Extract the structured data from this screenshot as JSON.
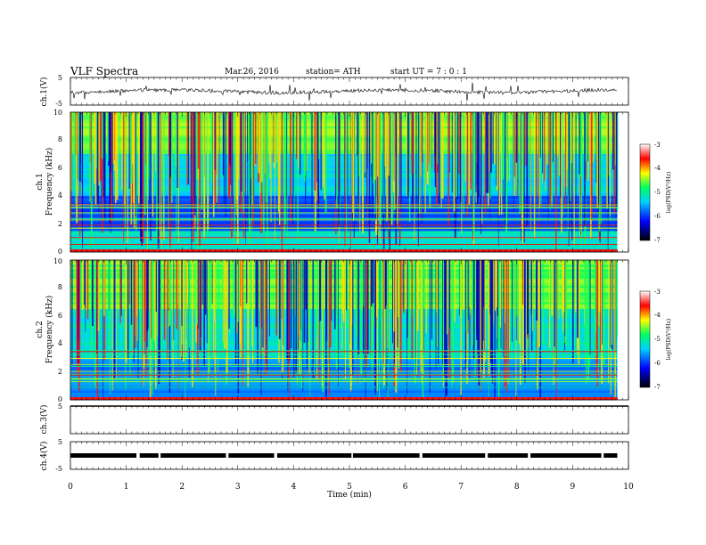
{
  "header": {
    "title": "VLF  Spectra",
    "date": "Mar.26, 2016",
    "station": "station= ATH",
    "start": "start  UT  =   7  : 0  : 1"
  },
  "chart_data": {
    "type": "heatmap",
    "x_axis": {
      "label": "Time  (min)",
      "range": [
        0,
        10
      ],
      "ticks": [
        "0",
        "1",
        "2",
        "3",
        "4",
        "5",
        "6",
        "7",
        "8",
        "9",
        "10"
      ],
      "data_end": 9.8
    },
    "panels": [
      {
        "id": "ch1-waveform",
        "kind": "waveform",
        "ylabel": "ch.1(V)",
        "yrange": [
          -5,
          5
        ],
        "ticks": [
          "5",
          "-5"
        ]
      },
      {
        "id": "ch1-spectrogram",
        "kind": "spectrogram",
        "ylabel_top": "ch.1",
        "ylabel": "Frequency  (kHz)",
        "yrange": [
          0,
          10
        ],
        "ticks": [
          "0",
          "2",
          "4",
          "6",
          "8",
          "10"
        ]
      },
      {
        "id": "ch2-spectrogram",
        "kind": "spectrogram",
        "ylabel_top": "ch.2",
        "ylabel": "Frequency  (kHz)",
        "yrange": [
          0,
          10
        ],
        "ticks": [
          "0",
          "2",
          "4",
          "6",
          "8",
          "10"
        ]
      },
      {
        "id": "ch3-waveform",
        "kind": "waveform",
        "ylabel": "ch.3(V)",
        "yrange": [
          -5,
          5
        ],
        "ticks": [
          "5"
        ]
      },
      {
        "id": "ch4-waveform",
        "kind": "waveform",
        "ylabel": "ch.4(V)",
        "yrange": [
          -5,
          5
        ],
        "ticks": [
          "5",
          "-5"
        ]
      }
    ],
    "colorbar": {
      "label": "log(PSD(V²/Hz)",
      "range": [
        -7,
        -3
      ],
      "ticks": [
        "-3",
        "-4",
        "-5",
        "-6",
        "-7"
      ],
      "colors": [
        "#000000",
        "#0000ff",
        "#00d0ff",
        "#00ff60",
        "#ffff00",
        "#ff0000",
        "#ffffff"
      ]
    },
    "grid": false
  }
}
